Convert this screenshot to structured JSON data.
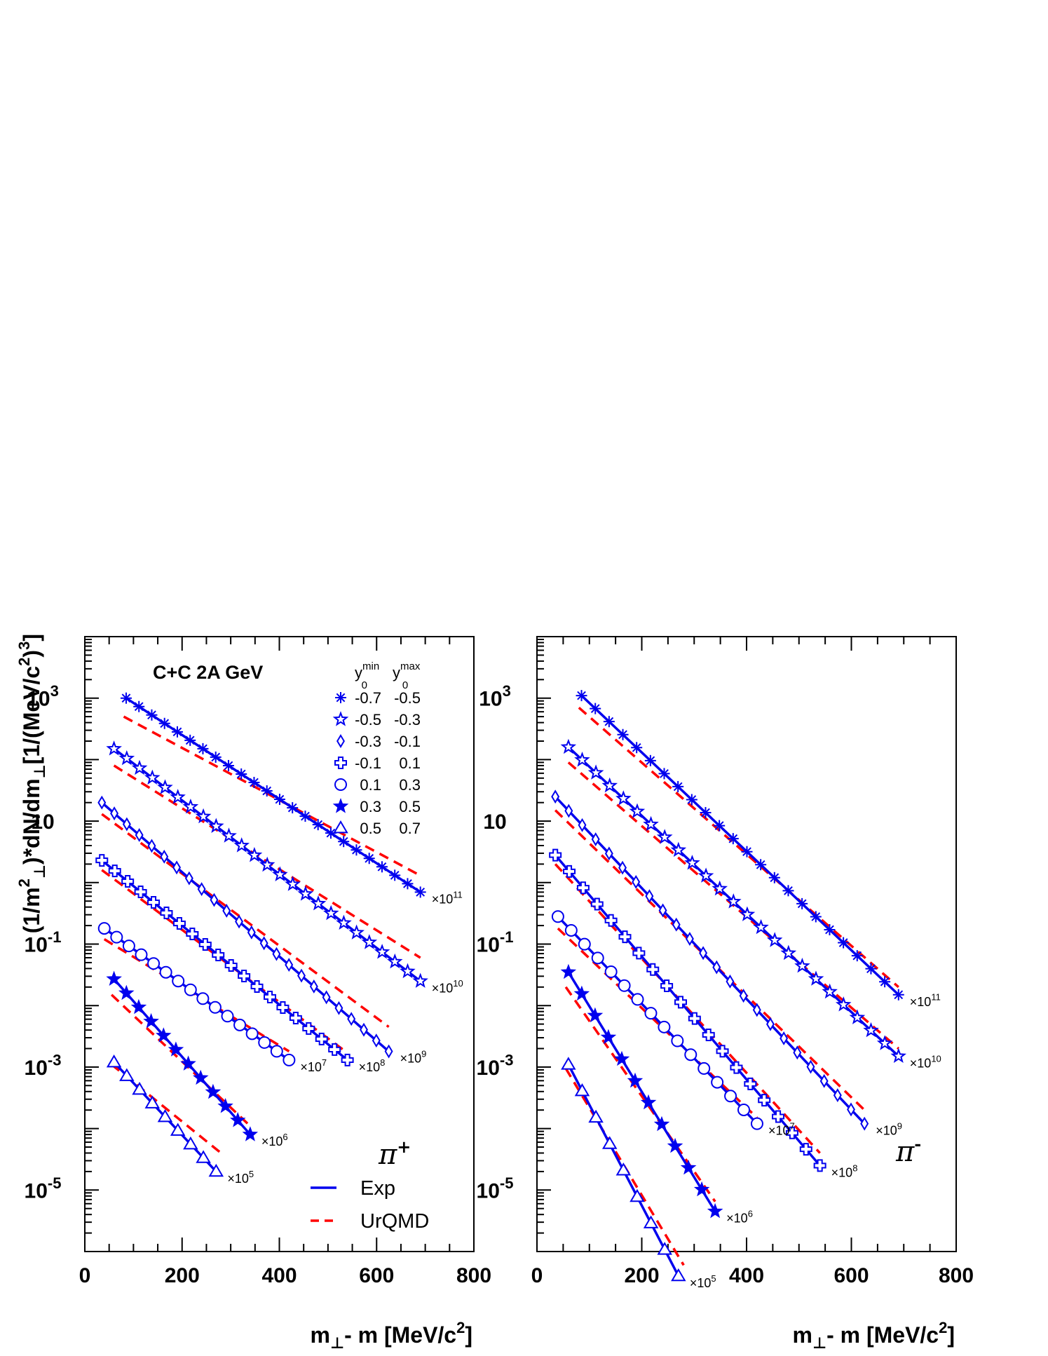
{
  "chart_data": [
    {
      "type": "line",
      "panel": "left",
      "title": "C+C 2A GeV",
      "particle": "π",
      "particle_sign": "+",
      "xlabel": "m_⊥- m [MeV/c²]",
      "ylabel": "(1/m²⊥)*dN/dm⊥[1/(MeV/c²)³]",
      "xlim": [
        0,
        800
      ],
      "ylim": [
        1e-06,
        10000.0
      ],
      "yscale": "log",
      "x_ticks": [
        "0",
        "200",
        "400",
        "600",
        "800"
      ],
      "y_ticks": [
        {
          "value": 1000.0,
          "base": "10",
          "exp": "3"
        },
        {
          "value": 10,
          "base": "10",
          "exp": ""
        },
        {
          "value": 0.1,
          "base": "10",
          "exp": "-1"
        },
        {
          "value": 0.001,
          "base": "10",
          "exp": "-3"
        },
        {
          "value": 1e-05,
          "base": "10",
          "exp": "-5"
        }
      ],
      "legend_header": {
        "ymin": "y",
        "ymin_sub": "0",
        "ymin_sup": "min",
        "ymax": "y",
        "ymax_sub": "0",
        "ymax_sup": "max"
      },
      "line_legend": [
        {
          "label": "Exp",
          "style": "solid",
          "color": "#0000ee"
        },
        {
          "label": "UrQMD",
          "style": "dashed",
          "color": "#ff0000"
        }
      ],
      "series": [
        {
          "name": "-0.7  -0.5",
          "lo": "-0.7",
          "hi": "-0.5",
          "marker": "asterisk",
          "mult": "×10",
          "mult_exp": "11",
          "x_start": 85,
          "x_end": 690,
          "y_start": 1000,
          "y_end": 0.7,
          "model_x_start": 80,
          "model_x_end": 690,
          "model_y_start": 500,
          "model_y_end": 1.3
        },
        {
          "name": "-0.5  -0.3",
          "lo": "-0.5",
          "hi": "-0.3",
          "marker": "open-star",
          "mult": "×10",
          "mult_exp": "10",
          "x_start": 60,
          "x_end": 690,
          "y_start": 150,
          "y_end": 0.025,
          "model_x_start": 60,
          "model_x_end": 690,
          "model_y_start": 80,
          "model_y_end": 0.06
        },
        {
          "name": "-0.3  -0.1",
          "lo": "-0.3",
          "hi": "-0.1",
          "marker": "open-diamond",
          "mult": "×10",
          "mult_exp": "9",
          "x_start": 35,
          "x_end": 625,
          "y_start": 20,
          "y_end": 0.0018,
          "model_x_start": 35,
          "model_x_end": 625,
          "model_y_start": 13,
          "model_y_end": 0.0045
        },
        {
          "name": "-0.1  0.1",
          "lo": "-0.1",
          "hi": "0.1",
          "marker": "open-cross",
          "mult": "×10",
          "mult_exp": "8",
          "x_start": 35,
          "x_end": 540,
          "y_start": 2.3,
          "y_end": 0.0013,
          "model_x_start": 35,
          "model_x_end": 540,
          "model_y_start": 1.6,
          "model_y_end": 0.0017
        },
        {
          "name": "0.1  0.3",
          "lo": "0.1",
          "hi": "0.3",
          "marker": "open-circle",
          "mult": "×10",
          "mult_exp": "7",
          "x_start": 40,
          "x_end": 420,
          "y_start": 0.18,
          "y_end": 0.0013,
          "model_x_start": 40,
          "model_x_end": 420,
          "model_y_start": 0.12,
          "model_y_end": 0.0018
        },
        {
          "name": "0.3  0.5",
          "lo": "0.3",
          "hi": "0.5",
          "marker": "filled-star",
          "mult": "×10",
          "mult_exp": "6",
          "x_start": 60,
          "x_end": 340,
          "y_start": 0.027,
          "y_end": 8e-05,
          "model_x_start": 55,
          "model_x_end": 340,
          "model_y_start": 0.015,
          "model_y_end": 0.00011
        },
        {
          "name": "0.5  0.7",
          "lo": "0.5",
          "hi": "0.7",
          "marker": "open-triangle",
          "mult": "×10",
          "mult_exp": "5",
          "x_start": 60,
          "x_end": 270,
          "y_start": 0.0012,
          "y_end": 2e-05,
          "model_x_start": 55,
          "model_x_end": 280,
          "model_y_start": 0.0011,
          "model_y_end": 4e-05
        }
      ]
    },
    {
      "type": "line",
      "panel": "right",
      "particle": "π",
      "particle_sign": "-",
      "xlabel": "m_⊥- m [MeV/c²]",
      "xlim": [
        0,
        800
      ],
      "ylim": [
        1e-06,
        10000.0
      ],
      "yscale": "log",
      "x_ticks": [
        "0",
        "200",
        "400",
        "600",
        "800"
      ],
      "y_ticks": [
        {
          "value": 1000.0,
          "base": "10",
          "exp": "3"
        },
        {
          "value": 10,
          "base": "10",
          "exp": ""
        },
        {
          "value": 0.1,
          "base": "10",
          "exp": "-1"
        },
        {
          "value": 0.001,
          "base": "10",
          "exp": "-3"
        },
        {
          "value": 1e-05,
          "base": "10",
          "exp": "-5"
        }
      ],
      "series": [
        {
          "lo": "-0.7",
          "hi": "-0.5",
          "marker": "asterisk",
          "mult": "×10",
          "mult_exp": "11",
          "x_start": 85,
          "x_end": 690,
          "y_start": 1100,
          "y_end": 0.015,
          "model_x_start": 80,
          "model_x_end": 690,
          "model_y_start": 700,
          "model_y_end": 0.02
        },
        {
          "lo": "-0.5",
          "hi": "-0.3",
          "marker": "open-star",
          "mult": "×10",
          "mult_exp": "10",
          "x_start": 60,
          "x_end": 690,
          "y_start": 160,
          "y_end": 0.0015,
          "model_x_start": 60,
          "model_x_end": 690,
          "model_y_start": 90,
          "model_y_end": 0.002
        },
        {
          "lo": "-0.3",
          "hi": "-0.1",
          "marker": "open-diamond",
          "mult": "×10",
          "mult_exp": "9",
          "x_start": 35,
          "x_end": 625,
          "y_start": 25,
          "y_end": 0.00012,
          "model_x_start": 35,
          "model_x_end": 625,
          "model_y_start": 15,
          "model_y_end": 0.0002
        },
        {
          "lo": "-0.1",
          "hi": "0.1",
          "marker": "open-cross",
          "mult": "×10",
          "mult_exp": "8",
          "x_start": 35,
          "x_end": 540,
          "y_start": 2.8,
          "y_end": 2.5e-05,
          "model_x_start": 35,
          "model_x_end": 540,
          "model_y_start": 2,
          "model_y_end": 4e-05
        },
        {
          "lo": "0.1",
          "hi": "0.3",
          "marker": "open-circle",
          "mult": "×10",
          "mult_exp": "7",
          "x_start": 40,
          "x_end": 420,
          "y_start": 0.28,
          "y_end": 0.00012,
          "model_x_start": 40,
          "model_x_end": 420,
          "model_y_start": 0.18,
          "model_y_end": 0.00015
        },
        {
          "lo": "0.3",
          "hi": "0.5",
          "marker": "filled-star",
          "mult": "×10",
          "mult_exp": "6",
          "x_start": 60,
          "x_end": 340,
          "y_start": 0.035,
          "y_end": 4.5e-06,
          "model_x_start": 55,
          "model_x_end": 340,
          "model_y_start": 0.02,
          "model_y_end": 6.5e-06
        },
        {
          "lo": "0.5",
          "hi": "0.7",
          "marker": "open-triangle",
          "mult": "×10",
          "mult_exp": "5",
          "x_start": 60,
          "x_end": 270,
          "y_start": 0.0011,
          "y_end": 4e-07,
          "model_x_start": 55,
          "model_x_end": 280,
          "model_y_start": 0.00095,
          "model_y_end": 6e-07
        }
      ]
    }
  ]
}
